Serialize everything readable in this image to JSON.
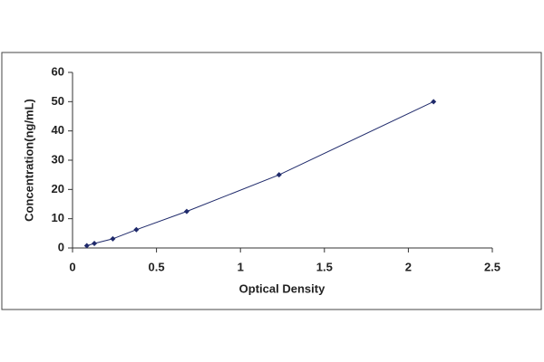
{
  "chart_data": {
    "type": "scatter",
    "x_label": "Optical Density",
    "y_label": "Concentration(ng/mL)",
    "x": [
      0.085,
      0.13,
      0.24,
      0.38,
      0.68,
      1.23,
      2.15
    ],
    "values": [
      0.78,
      1.56,
      3.12,
      6.25,
      12.5,
      25,
      50
    ],
    "color": "#1f2a6b",
    "connect": true,
    "xlim": [
      0,
      2.5
    ],
    "xticks": [
      0,
      0.5,
      1,
      1.5,
      2,
      2.5
    ],
    "ylim": [
      0,
      60
    ],
    "yticks": [
      0,
      10,
      20,
      30,
      40,
      50,
      60
    ],
    "grid": false
  }
}
